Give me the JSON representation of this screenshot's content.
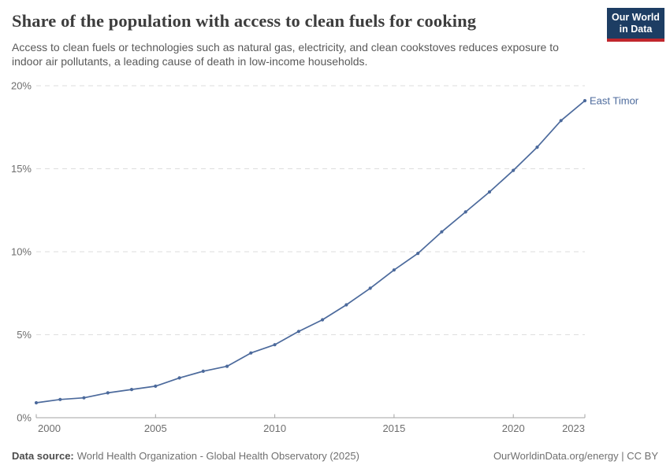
{
  "header": {
    "title": "Share of the population with access to clean fuels for cooking",
    "subtitle": "Access to clean fuels or technologies such as natural gas, electricity, and clean cookstoves reduces exposure to indoor air pollutants, a leading cause of death in low-income households.",
    "logo": {
      "line1": "Our World",
      "line2": "in Data"
    }
  },
  "footer": {
    "source_label": "Data source:",
    "source_text": "World Health Organization - Global Health Observatory (2025)",
    "credit": "OurWorldinData.org/energy | CC BY"
  },
  "colors": {
    "line": "#4C6A9C",
    "logo_navy": "#1D3D63",
    "logo_red": "#C0262C",
    "grid": "#DEDEDE",
    "axis": "#A3A3A3",
    "tick_text": "#6E6E6E"
  },
  "chart_data": {
    "type": "line",
    "title": "Share of the population with access to clean fuels for cooking",
    "xlabel": "",
    "ylabel": "",
    "x": [
      2000,
      2001,
      2002,
      2003,
      2004,
      2005,
      2006,
      2007,
      2008,
      2009,
      2010,
      2011,
      2012,
      2013,
      2014,
      2015,
      2016,
      2017,
      2018,
      2019,
      2020,
      2021,
      2022,
      2023
    ],
    "series": [
      {
        "name": "East Timor",
        "color": "#4C6A9C",
        "values": [
          0.9,
          1.1,
          1.2,
          1.5,
          1.7,
          1.9,
          2.4,
          2.8,
          3.1,
          3.9,
          4.4,
          5.2,
          5.9,
          6.8,
          7.8,
          8.9,
          9.9,
          11.2,
          12.4,
          13.6,
          14.9,
          16.3,
          17.9,
          19.1
        ]
      }
    ],
    "xlim": [
      2000,
      2023
    ],
    "ylim": [
      0,
      20
    ],
    "xticks": {
      "values": [
        2000,
        2005,
        2010,
        2015,
        2020,
        2023
      ],
      "labels": [
        "2000",
        "2005",
        "2010",
        "2015",
        "2020",
        "2023"
      ]
    },
    "yticks": {
      "values": [
        0,
        5,
        10,
        15,
        20
      ],
      "labels": [
        "0%",
        "5%",
        "10%",
        "15%",
        "20%"
      ]
    },
    "grid": "horizontal-dashed",
    "legend_position": "line-end-label",
    "markers": true
  }
}
